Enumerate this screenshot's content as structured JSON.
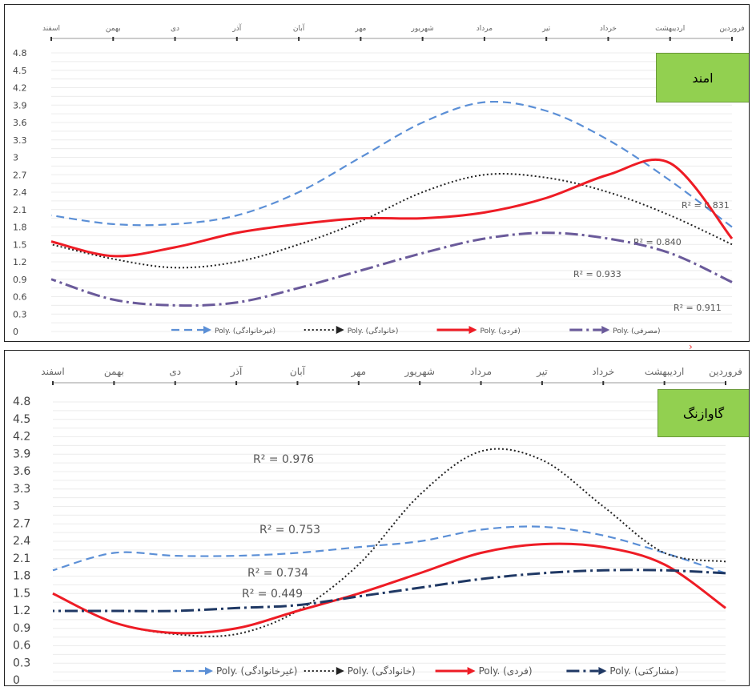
{
  "colors": {
    "non_family": "#5b8fd6",
    "family": "#222222",
    "individual": "#ee1c25",
    "consumption": "#6a5a9a",
    "participatory": "#1f3864",
    "label_bg": "#92d050"
  },
  "separator_mark": "›",
  "chart_data": [
    {
      "type": "line",
      "label": "امند",
      "categories": [
        "فروردین",
        "اردیبهشت",
        "خرداد",
        "تیر",
        "مرداد",
        "شهریور",
        "مهر",
        "آبان",
        "آذر",
        "دی",
        "بهمن",
        "اسفند"
      ],
      "ylim": [
        0,
        4.8
      ],
      "yticks": [
        "0",
        "0.3",
        "0.6",
        "0.9",
        "1.2",
        "1.5",
        "1.8",
        "2.1",
        "2.4",
        "2.7",
        "3",
        "3.3",
        "3.6",
        "3.9",
        "4.2",
        "4.5",
        "4.8"
      ],
      "series": [
        {
          "name": "Poly. (غیرخانوادگی)",
          "style": "dash",
          "color": "#5b8fd6",
          "values": [
            1.8,
            2.6,
            3.3,
            3.8,
            3.95,
            3.6,
            3.0,
            2.4,
            2.0,
            1.85,
            1.85,
            2.0
          ],
          "r2": "R² = 0.831"
        },
        {
          "name": "Poly. (خانوادگی)",
          "style": "dot",
          "color": "#222222",
          "values": [
            1.5,
            2.0,
            2.4,
            2.65,
            2.7,
            2.4,
            1.9,
            1.5,
            1.2,
            1.1,
            1.25,
            1.5
          ],
          "r2": "R² = 0.933"
        },
        {
          "name": "Poly. (فردی)",
          "style": "solid",
          "color": "#ee1c25",
          "values": [
            1.6,
            2.9,
            2.7,
            2.3,
            2.05,
            1.95,
            1.95,
            1.85,
            1.7,
            1.45,
            1.3,
            1.55
          ],
          "r2": "R² = 0.840"
        },
        {
          "name": "Poly. (مصرفی)",
          "style": "dashdot",
          "color": "#6a5a9a",
          "values": [
            0.85,
            1.35,
            1.6,
            1.7,
            1.6,
            1.35,
            1.05,
            0.75,
            0.5,
            0.45,
            0.55,
            0.9
          ],
          "r2": "R² = 0.911"
        }
      ]
    },
    {
      "type": "line",
      "label": "گاوازنگ",
      "categories": [
        "فروردین",
        "اردیبهشت",
        "خرداد",
        "تیر",
        "مرداد",
        "شهریور",
        "مهر",
        "آبان",
        "آذر",
        "دی",
        "بهمن",
        "اسفند"
      ],
      "ylim": [
        0,
        4.8
      ],
      "yticks": [
        "0",
        "0.3",
        "0.6",
        "0.9",
        "1.2",
        "1.5",
        "1.8",
        "2.1",
        "2.4",
        "2.7",
        "3",
        "3.3",
        "3.6",
        "3.9",
        "4.2",
        "4.5",
        "4.8"
      ],
      "series": [
        {
          "name": "Poly. (غیرخانوادگی)",
          "style": "dash",
          "color": "#5b8fd6",
          "values": [
            1.85,
            2.2,
            2.5,
            2.65,
            2.6,
            2.4,
            2.3,
            2.2,
            2.15,
            2.15,
            2.2,
            1.9
          ],
          "r2": "R² = 0.753"
        },
        {
          "name": "Poly. (خانوادگی)",
          "style": "dot",
          "color": "#222222",
          "values": [
            2.05,
            2.2,
            3.0,
            3.8,
            3.95,
            3.2,
            2.0,
            1.2,
            0.8,
            0.8,
            1.0,
            1.5
          ],
          "r2": "R² = 0.976"
        },
        {
          "name": "Poly. (فردی)",
          "style": "solid",
          "color": "#ee1c25",
          "values": [
            1.25,
            2.0,
            2.3,
            2.35,
            2.2,
            1.85,
            1.5,
            1.2,
            0.9,
            0.82,
            1.0,
            1.5
          ],
          "r2": "R² = 0.449"
        },
        {
          "name": "Poly. (مشارکتی)",
          "style": "dashdot",
          "color": "#1f3864",
          "values": [
            1.85,
            1.9,
            1.9,
            1.85,
            1.75,
            1.6,
            1.45,
            1.3,
            1.25,
            1.2,
            1.2,
            1.2
          ],
          "r2": "R² = 0.734"
        }
      ]
    }
  ]
}
